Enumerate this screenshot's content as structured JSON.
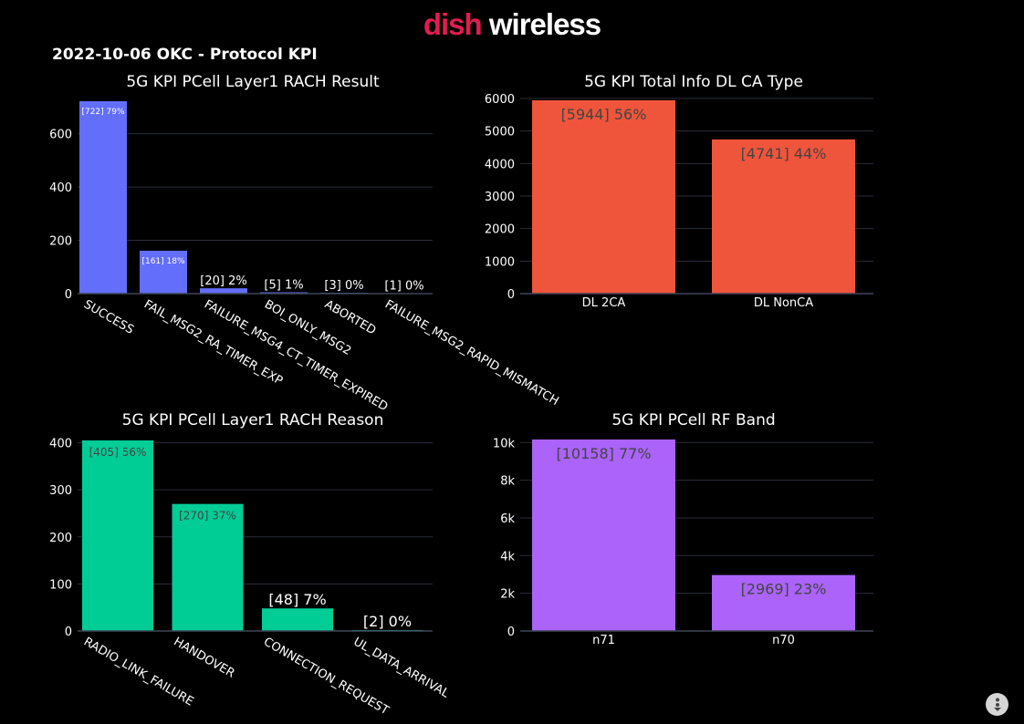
{
  "header": {
    "logo_part1": "dish",
    "logo_part2": "wireless",
    "title": "2022-10-06 OKC - Protocol KPI"
  },
  "colors": {
    "blue": "#636efa",
    "red": "#ef553b",
    "green": "#00cc96",
    "purple": "#ab63fa",
    "grid": "#2a2e3a",
    "axis": "#3f4558"
  },
  "icons": {
    "fab": "vertical-ellipsis-icon"
  },
  "chart_data": [
    {
      "id": "rach-result",
      "type": "bar",
      "title": "5G KPI PCell Layer1 RACH Result",
      "categories": [
        "SUCCESS",
        "FAIL_MSG2_RA_TIMER_EXP",
        "FAILURE_MSG4_CT_TIMER_EXPIRED",
        "BOI_ONLY_MSG2",
        "ABORTED",
        "FAILURE_MSG2_RAPID_MISMATCH"
      ],
      "values": [
        722,
        161,
        20,
        5,
        3,
        1
      ],
      "labels": [
        "[722]  79%",
        "[161]  18%",
        "[20]  2%",
        "[5]  1%",
        "[3]  0%",
        "[1]  0%"
      ],
      "color": "#636efa",
      "yticks": [
        0,
        200,
        400,
        600
      ],
      "ylim": [
        0,
        722
      ],
      "xlabel": "",
      "ylabel": ""
    },
    {
      "id": "dl-ca-type",
      "type": "bar",
      "title": "5G KPI Total Info DL CA Type",
      "categories": [
        "DL 2CA",
        "DL NonCA"
      ],
      "values": [
        5944,
        4741
      ],
      "labels": [
        "[5944]  56%",
        "[4741]  44%"
      ],
      "color": "#ef553b",
      "yticks": [
        0,
        1000,
        2000,
        3000,
        4000,
        5000,
        6000
      ],
      "ylim": [
        0,
        6000
      ],
      "xlabel": "",
      "ylabel": ""
    },
    {
      "id": "rach-reason",
      "type": "bar",
      "title": "5G KPI PCell Layer1 RACH Reason",
      "categories": [
        "RADIO_LINK_FAILURE",
        "HANDOVER",
        "CONNECTION_REQUEST",
        "UL_DATA_ARRIVAL"
      ],
      "values": [
        405,
        270,
        48,
        2
      ],
      "labels": [
        "[405]  56%",
        "[270]  37%",
        "[48]  7%",
        "[2]  0%"
      ],
      "color": "#00cc96",
      "yticks": [
        0,
        100,
        200,
        300,
        400
      ],
      "ylim": [
        0,
        405
      ],
      "xlabel": "",
      "ylabel": ""
    },
    {
      "id": "rf-band",
      "type": "bar",
      "title": "5G KPI PCell RF Band",
      "categories": [
        "n71",
        "n70"
      ],
      "values": [
        10158,
        2969
      ],
      "labels": [
        "[10158]  77%",
        "[2969]  23%"
      ],
      "color": "#ab63fa",
      "yticks": [
        0,
        2000,
        4000,
        6000,
        8000,
        10000
      ],
      "yticklabels": [
        "0",
        "2k",
        "4k",
        "6k",
        "8k",
        "10k"
      ],
      "ylim": [
        0,
        10158
      ],
      "xlabel": "",
      "ylabel": ""
    }
  ]
}
